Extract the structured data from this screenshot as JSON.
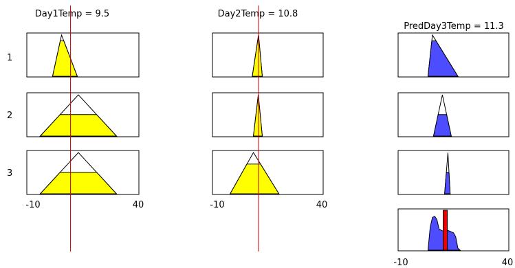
{
  "inputs": [
    {
      "id": "day1",
      "title": "Day1Temp = 9.5",
      "value": 9.5,
      "range": [
        -10,
        40
      ],
      "range_labels": [
        "-10",
        "40"
      ],
      "rules": [
        {
          "mf": [
            1.5,
            5.5,
            12.5
          ],
          "fire": 0.86
        },
        {
          "mf": [
            -4,
            13,
            30
          ],
          "fire": 0.52
        },
        {
          "mf": [
            -4,
            13,
            30
          ],
          "fire": 0.52
        }
      ]
    },
    {
      "id": "day2",
      "title": "Day2Temp = 10.8",
      "value": 10.8,
      "range": [
        -10,
        40
      ],
      "range_labels": [
        "-10",
        "40"
      ],
      "rules": [
        {
          "mf": [
            8,
            10.8,
            12.5
          ],
          "fire": 1.0
        },
        {
          "mf": [
            8.5,
            10.7,
            12.5
          ],
          "fire": 0.95
        },
        {
          "mf": [
            -2,
            8.5,
            20
          ],
          "fire": 0.72
        }
      ]
    }
  ],
  "rule_labels": [
    "1",
    "2",
    "3"
  ],
  "output": {
    "id": "predday3",
    "title": "PredDay3Temp = 11.3",
    "value": 11.3,
    "range": [
      -10,
      40
    ],
    "range_labels": [
      "-10",
      "40"
    ],
    "rules": [
      {
        "mf": [
          3.5,
          5.5,
          17
        ],
        "fire": 0.86
      },
      {
        "mf": [
          6,
          10,
          14
        ],
        "fire": 0.52
      },
      {
        "mf": [
          11,
          12.5,
          13.5
        ],
        "fire": 0.52
      }
    ],
    "aggregate": [
      [
        3.5,
        0
      ],
      [
        4.5,
        0.6
      ],
      [
        5.5,
        0.85
      ],
      [
        6.5,
        0.88
      ],
      [
        7.5,
        0.8
      ],
      [
        8.5,
        0.55
      ],
      [
        10,
        0.5
      ],
      [
        11,
        0.52
      ],
      [
        12,
        0.52
      ],
      [
        13,
        0.5
      ],
      [
        15,
        0.45
      ],
      [
        16,
        0.35
      ],
      [
        17,
        0.05
      ],
      [
        18,
        0
      ]
    ]
  },
  "colors": {
    "input_fill": "#ffff00",
    "output_fill": "#4d4dff",
    "value_line": "#cc0000",
    "result_bar": "#ee0000",
    "frame": "#000000"
  }
}
